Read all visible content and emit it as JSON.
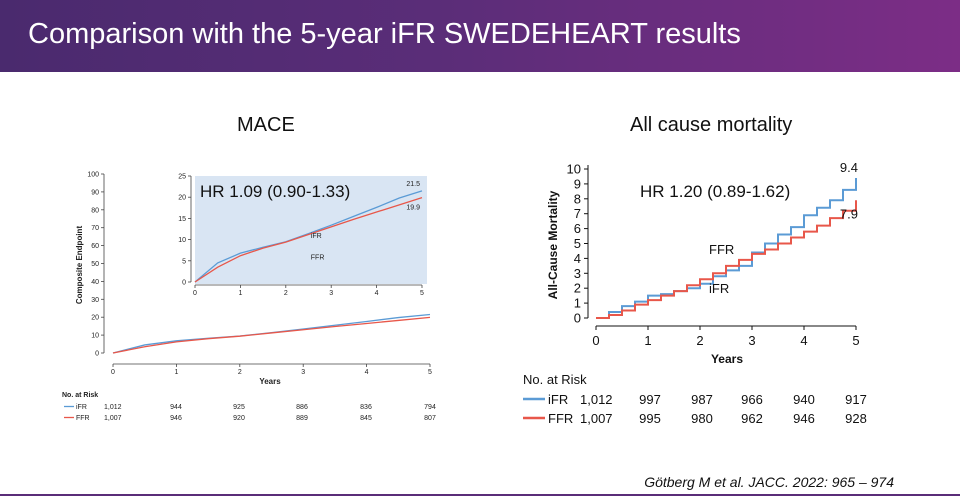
{
  "slide": {
    "title": "Comparison with the 5-year iFR SWEDEHEART results",
    "citation": "Götberg M et al. JACC. 2022: 965 – 974"
  },
  "colors": {
    "banner_start": "#4a2a6e",
    "banner_end": "#7c2d86",
    "ifr": "#5b9bd5",
    "ffr": "#e8574a"
  },
  "chart_data": [
    {
      "type": "line",
      "panel_title": "MACE",
      "title": "",
      "ylabel": "Composite Endpoint",
      "xlabel": "Years",
      "xlim": [
        0,
        5
      ],
      "ylim": [
        0,
        100
      ],
      "x_ticks": [
        "0",
        "1",
        "2",
        "3",
        "4",
        "5"
      ],
      "y_ticks": [
        "0",
        "10",
        "20",
        "30",
        "40",
        "50",
        "60",
        "70",
        "80",
        "90",
        "100"
      ],
      "grid": false,
      "series": [
        {
          "name": "iFR",
          "x": [
            0,
            0.5,
            1,
            1.5,
            2,
            2.5,
            3,
            3.5,
            4,
            4.5,
            5
          ],
          "values": [
            0,
            4.5,
            6.8,
            8.2,
            9.5,
            11.4,
            13.4,
            15.5,
            17.6,
            19.8,
            21.5
          ]
        },
        {
          "name": "FFR",
          "x": [
            0,
            0.5,
            1,
            1.5,
            2,
            2.5,
            3,
            3.5,
            4,
            4.5,
            5
          ],
          "values": [
            0,
            3.5,
            6.2,
            8.0,
            9.4,
            11.2,
            13.0,
            14.8,
            16.5,
            18.2,
            19.9
          ]
        }
      ],
      "inset": {
        "annotation": "HR 1.09 (0.90-1.33)",
        "xlim": [
          0,
          5
        ],
        "ylim": [
          0,
          25
        ],
        "x_ticks": [
          "0",
          "1",
          "2",
          "3",
          "4",
          "5"
        ],
        "y_ticks": [
          "0",
          "5",
          "10",
          "15",
          "20",
          "25"
        ],
        "end_labels": {
          "iFR": "21.5",
          "FFR": "19.9"
        },
        "series_labels": [
          "iFR",
          "FFR"
        ]
      },
      "at_risk": {
        "heading": "No. at Risk",
        "rows": [
          {
            "name": "iFR",
            "values": [
              "1,012",
              "944",
              "925",
              "886",
              "836",
              "794"
            ]
          },
          {
            "name": "FFR",
            "values": [
              "1,007",
              "946",
              "920",
              "889",
              "845",
              "807"
            ]
          }
        ]
      }
    },
    {
      "type": "line",
      "panel_title": "All cause mortality",
      "title": "",
      "annotation": "HR 1.20 (0.89-1.62)",
      "ylabel": "All-Cause Mortality",
      "xlabel": "Years",
      "xlim": [
        0,
        5
      ],
      "ylim": [
        0,
        10
      ],
      "x_ticks": [
        "0",
        "1",
        "2",
        "3",
        "4",
        "5"
      ],
      "y_ticks": [
        "0",
        "1",
        "2",
        "3",
        "4",
        "5",
        "6",
        "7",
        "8",
        "9",
        "10"
      ],
      "grid": false,
      "series_labels": [
        "FFR",
        "iFR"
      ],
      "end_labels": {
        "iFR": "9.4",
        "FFR": "7.9"
      },
      "series": [
        {
          "name": "iFR",
          "x": [
            0,
            0.25,
            0.5,
            0.75,
            1,
            1.25,
            1.5,
            1.75,
            2,
            2.25,
            2.5,
            2.75,
            3,
            3.25,
            3.5,
            3.75,
            4,
            4.25,
            4.5,
            4.75,
            5
          ],
          "values": [
            0,
            0.4,
            0.8,
            1.1,
            1.5,
            1.6,
            1.8,
            2.0,
            2.3,
            2.8,
            3.2,
            3.5,
            4.4,
            5.0,
            5.6,
            6.1,
            6.9,
            7.4,
            7.9,
            8.6,
            9.4
          ]
        },
        {
          "name": "FFR",
          "x": [
            0,
            0.25,
            0.5,
            0.75,
            1,
            1.25,
            1.5,
            1.75,
            2,
            2.25,
            2.5,
            2.75,
            3,
            3.25,
            3.5,
            3.75,
            4,
            4.25,
            4.5,
            4.75,
            5
          ],
          "values": [
            0,
            0.2,
            0.5,
            0.9,
            1.2,
            1.5,
            1.8,
            2.2,
            2.6,
            3.0,
            3.5,
            3.9,
            4.3,
            4.6,
            5.0,
            5.4,
            5.8,
            6.2,
            6.7,
            7.2,
            7.9
          ]
        }
      ],
      "at_risk": {
        "heading": "No. at Risk",
        "rows": [
          {
            "name": "iFR",
            "values": [
              "1,012",
              "997",
              "987",
              "966",
              "940",
              "917"
            ]
          },
          {
            "name": "FFR",
            "values": [
              "1,007",
              "995",
              "980",
              "962",
              "946",
              "928"
            ]
          }
        ]
      }
    }
  ]
}
